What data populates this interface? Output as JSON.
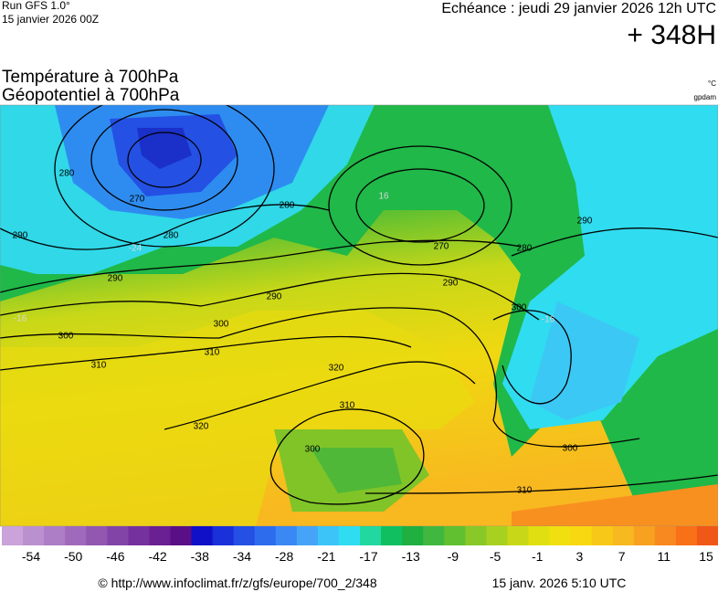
{
  "header": {
    "run": "Run GFS 1.0°",
    "run_date": "15 janvier 2026 00Z",
    "echeance": "Echéance : jeudi 29 janvier 2026 12h UTC",
    "lead": "+ 348H"
  },
  "titles": {
    "line1": "Température à 700hPa",
    "line2": "Géopotentiel à 700hPa",
    "unit_temp": "°C",
    "unit_geo": "gpdam"
  },
  "map": {
    "contour_labels": [
      "280",
      "270",
      "280",
      "290",
      "290",
      "300",
      "290",
      "300",
      "310",
      "310",
      "320",
      "320",
      "310",
      "300",
      "280",
      "270",
      "290",
      "280",
      "290",
      "300",
      "300",
      "310"
    ],
    "temp_labels": [
      "-24",
      "-16",
      "16",
      "-16"
    ]
  },
  "colorbar": {
    "labels": [
      "-54",
      "-50",
      "-46",
      "-42",
      "-38",
      "-34",
      "-28",
      "-21",
      "-17",
      "-13",
      "-9",
      "-5",
      "-1",
      "3",
      "7",
      "11",
      "15"
    ],
    "colors": [
      "#c9a3d9",
      "#bb90cf",
      "#ad7dc5",
      "#9f6abb",
      "#9157b1",
      "#8344a7",
      "#75319d",
      "#6a1f92",
      "#5a0f86",
      "#1010c8",
      "#1a30d8",
      "#2450e4",
      "#2e6cee",
      "#3a88f4",
      "#46a4f8",
      "#3cc4f8",
      "#30dcf0",
      "#20d8a0",
      "#10c060",
      "#20b040",
      "#40b840",
      "#60c030",
      "#88c828",
      "#a8d020",
      "#c8d818",
      "#e0e010",
      "#f0e010",
      "#f8d810",
      "#f8c818",
      "#f8b820",
      "#f8a020",
      "#f88820",
      "#f87018",
      "#f05818"
    ]
  },
  "footer": {
    "url": "© http://www.infoclimat.fr/z/gfs/europe/700_2/348",
    "date": "15 janv. 2026  5:10 UTC"
  }
}
